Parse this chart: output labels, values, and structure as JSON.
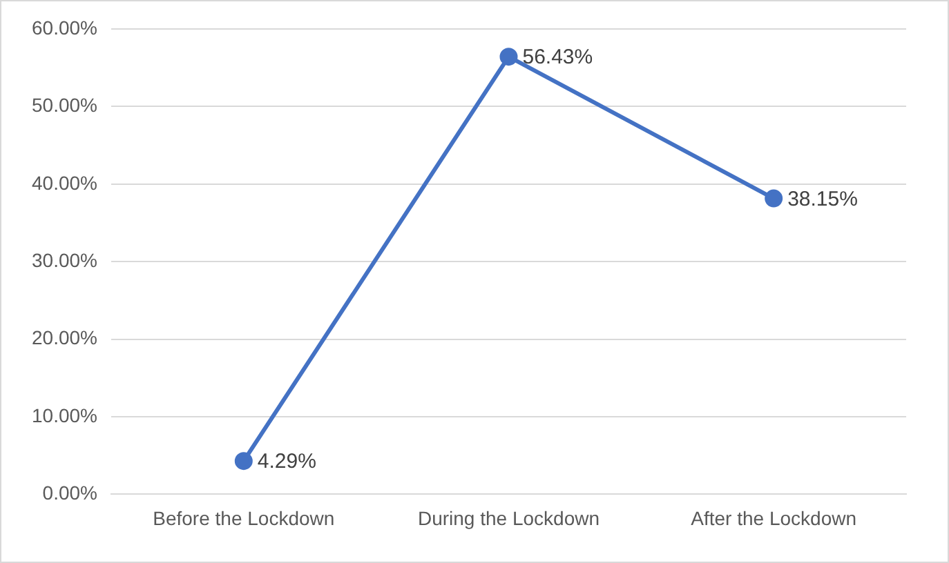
{
  "chart_data": {
    "type": "line",
    "categories": [
      "Before the Lockdown",
      "During the Lockdown",
      "After the Lockdown"
    ],
    "series": [
      {
        "color": "#4472c4",
        "values": [
          4.29,
          56.43,
          38.15
        ],
        "value_labels": [
          "4.29%",
          "56.43%",
          "38.15%"
        ]
      }
    ],
    "ylim": [
      0,
      60
    ],
    "yticks": [
      {
        "value": 0,
        "label": "0.00%"
      },
      {
        "value": 10,
        "label": "10.00%"
      },
      {
        "value": 20,
        "label": "20.00%"
      },
      {
        "value": 30,
        "label": "30.00%"
      },
      {
        "value": 40,
        "label": "40.00%"
      },
      {
        "value": 50,
        "label": "50.00%"
      },
      {
        "value": 60,
        "label": "60.00%"
      }
    ],
    "grid": "y",
    "legend": false,
    "marker": "circle",
    "line_style": "solid"
  }
}
